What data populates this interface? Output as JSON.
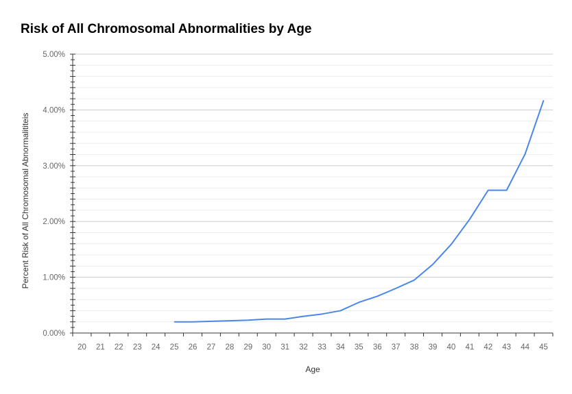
{
  "chart_data": {
    "type": "line",
    "title": "Risk of All Chromosomal Abnormalities by Age",
    "xlabel": "Age",
    "ylabel": "Percent Risk of All Chromosomal Abnormalititeis",
    "categories": [
      "20",
      "21",
      "22",
      "23",
      "24",
      "25",
      "26",
      "27",
      "28",
      "29",
      "30",
      "31",
      "32",
      "33",
      "34",
      "35",
      "36",
      "37",
      "38",
      "39",
      "40",
      "41",
      "42",
      "43",
      "44",
      "45"
    ],
    "series": [
      {
        "values": [
          null,
          null,
          null,
          null,
          null,
          0.2,
          0.2,
          0.21,
          0.22,
          0.23,
          0.25,
          0.25,
          0.3,
          0.34,
          0.4,
          0.55,
          0.66,
          0.8,
          0.95,
          1.23,
          1.59,
          2.04,
          2.56,
          2.56,
          3.21,
          4.17
        ],
        "color": "#4a86e8"
      }
    ],
    "ylim": [
      0,
      5
    ],
    "yticks": [
      "0.00%",
      "1.00%",
      "2.00%",
      "3.00%",
      "4.00%",
      "5.00%"
    ],
    "grid": true,
    "legend": "none"
  }
}
